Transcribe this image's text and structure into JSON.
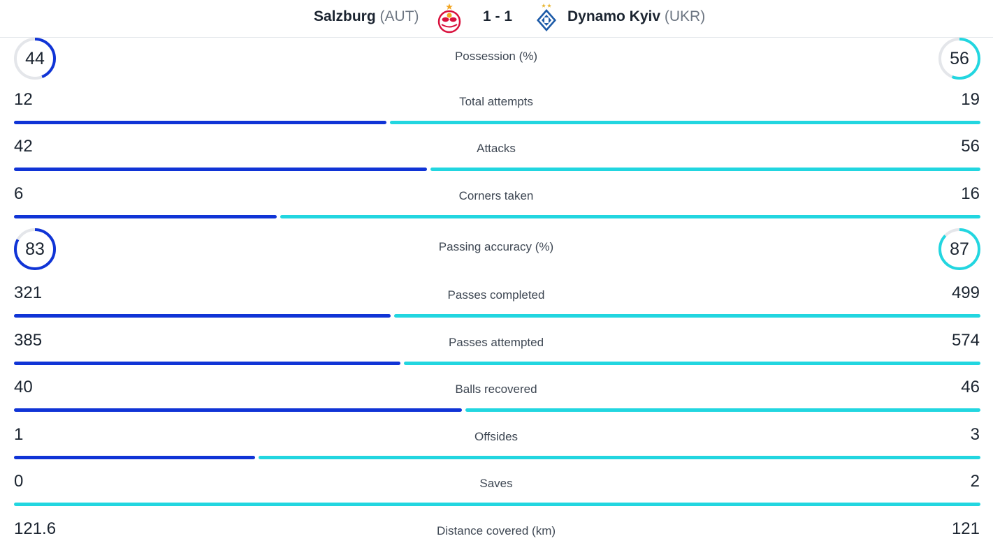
{
  "match": {
    "home_name": "Salzburg",
    "home_code": "(AUT)",
    "score": "1 - 1",
    "away_name": "Dynamo Kyiv",
    "away_code": "(UKR)",
    "home_crest_icon": "red-bull-salzburg-crest-icon",
    "away_crest_icon": "dynamo-kyiv-crest-icon"
  },
  "colors": {
    "home": "#1034d6",
    "away": "#22d6e0",
    "track": "#e4e6ea"
  },
  "stats": [
    {
      "type": "ring",
      "label": "Possession (%)",
      "home": "44",
      "away": "56",
      "home_value": 44,
      "away_value": 56
    },
    {
      "type": "bar",
      "label": "Total attempts",
      "home": "12",
      "away": "19",
      "home_value": 12,
      "away_value": 19
    },
    {
      "type": "bar",
      "label": "Attacks",
      "home": "42",
      "away": "56",
      "home_value": 42,
      "away_value": 56
    },
    {
      "type": "bar",
      "label": "Corners taken",
      "home": "6",
      "away": "16",
      "home_value": 6,
      "away_value": 16
    },
    {
      "type": "ring",
      "label": "Passing accuracy (%)",
      "home": "83",
      "away": "87",
      "home_value": 83,
      "away_value": 87
    },
    {
      "type": "bar",
      "label": "Passes completed",
      "home": "321",
      "away": "499",
      "home_value": 321,
      "away_value": 499
    },
    {
      "type": "bar",
      "label": "Passes attempted",
      "home": "385",
      "away": "574",
      "home_value": 385,
      "away_value": 574
    },
    {
      "type": "bar",
      "label": "Balls recovered",
      "home": "40",
      "away": "46",
      "home_value": 40,
      "away_value": 46
    },
    {
      "type": "bar",
      "label": "Offsides",
      "home": "1",
      "away": "3",
      "home_value": 1,
      "away_value": 3
    },
    {
      "type": "bar",
      "label": "Saves",
      "home": "0",
      "away": "2",
      "home_value": 0,
      "away_value": 2
    },
    {
      "type": "bar",
      "label": "Distance covered (km)",
      "home": "121.6",
      "away": "121",
      "home_value": 121.6,
      "away_value": 121
    }
  ]
}
